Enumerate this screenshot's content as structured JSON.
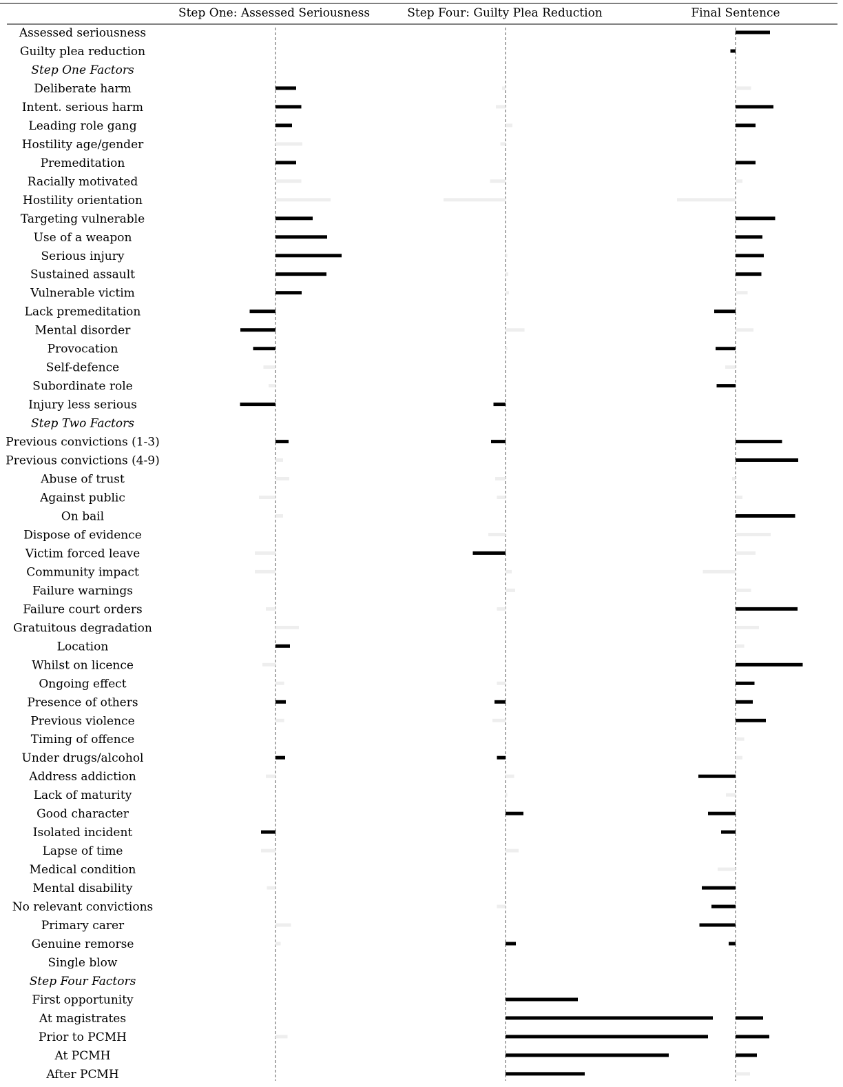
{
  "chart_data": {
    "type": "bar",
    "orientation": "horizontal",
    "panels": [
      {
        "key": "s1",
        "title": "Step One: Assessed Seriousness"
      },
      {
        "key": "s4",
        "title": "Step Four: Guilty Plea Reduction"
      },
      {
        "key": "fs",
        "title": "Final Sentence"
      }
    ],
    "rows": [
      {
        "label": "Assessed seriousness",
        "italic": false,
        "s1": null,
        "s4": null,
        "fs": 1.0,
        "s1_sig": false,
        "s4_sig": false,
        "fs_sig": true
      },
      {
        "label": "Guilty plea reduction",
        "italic": false,
        "s1": null,
        "s4": null,
        "fs": -0.15,
        "s1_sig": false,
        "s4_sig": false,
        "fs_sig": true
      },
      {
        "label": "Step One Factors",
        "italic": true,
        "s1": null,
        "s4": null,
        "fs": null,
        "s1_sig": false,
        "s4_sig": false,
        "fs_sig": false
      },
      {
        "label": "Deliberate harm",
        "italic": false,
        "s1": 0.6,
        "s4": -0.1,
        "fs": 0.45,
        "s1_sig": true,
        "s4_sig": false,
        "fs_sig": false
      },
      {
        "label": "Intent. serious harm",
        "italic": false,
        "s1": 0.75,
        "s4": -0.28,
        "fs": 1.1,
        "s1_sig": true,
        "s4_sig": false,
        "fs_sig": true
      },
      {
        "label": "Leading role gang",
        "italic": false,
        "s1": 0.48,
        "s4": 0.2,
        "fs": 0.58,
        "s1_sig": true,
        "s4_sig": false,
        "fs_sig": true
      },
      {
        "label": "Hostility age/gender",
        "italic": false,
        "s1": 0.78,
        "s4": -0.15,
        "fs": 0.0,
        "s1_sig": false,
        "s4_sig": false,
        "fs_sig": false
      },
      {
        "label": "Premeditation",
        "italic": false,
        "s1": 0.6,
        "s4": 0.0,
        "fs": 0.58,
        "s1_sig": true,
        "s4_sig": false,
        "fs_sig": true
      },
      {
        "label": "Racially motivated",
        "italic": false,
        "s1": 0.75,
        "s4": -0.45,
        "fs": 0.2,
        "s1_sig": false,
        "s4_sig": false,
        "fs_sig": false
      },
      {
        "label": "Hostility orientation",
        "italic": false,
        "s1": 1.6,
        "s4": -1.8,
        "fs": -1.7,
        "s1_sig": false,
        "s4_sig": false,
        "fs_sig": false
      },
      {
        "label": "Targeting vulnerable",
        "italic": false,
        "s1": 1.08,
        "s4": 0.0,
        "fs": 1.15,
        "s1_sig": true,
        "s4_sig": false,
        "fs_sig": true
      },
      {
        "label": "Use of a weapon",
        "italic": false,
        "s1": 1.5,
        "s4": 0.0,
        "fs": 0.78,
        "s1_sig": true,
        "s4_sig": false,
        "fs_sig": true
      },
      {
        "label": "Serious injury",
        "italic": false,
        "s1": 1.92,
        "s4": 0.05,
        "fs": 0.82,
        "s1_sig": true,
        "s4_sig": false,
        "fs_sig": true
      },
      {
        "label": "Sustained assault",
        "italic": false,
        "s1": 1.48,
        "s4": 0.08,
        "fs": 0.75,
        "s1_sig": true,
        "s4_sig": false,
        "fs_sig": true
      },
      {
        "label": "Vulnerable victim",
        "italic": false,
        "s1": 0.76,
        "s4": 0.1,
        "fs": 0.35,
        "s1_sig": true,
        "s4_sig": false,
        "fs_sig": false
      },
      {
        "label": "Lack premeditation",
        "italic": false,
        "s1": -0.75,
        "s4": 0.0,
        "fs": -0.62,
        "s1_sig": true,
        "s4_sig": false,
        "fs_sig": true
      },
      {
        "label": "Mental disorder",
        "italic": false,
        "s1": -1.02,
        "s4": 0.55,
        "fs": 0.52,
        "s1_sig": true,
        "s4_sig": false,
        "fs_sig": false
      },
      {
        "label": "Provocation",
        "italic": false,
        "s1": -0.65,
        "s4": 0.05,
        "fs": -0.58,
        "s1_sig": true,
        "s4_sig": false,
        "fs_sig": true
      },
      {
        "label": "Self-defence",
        "italic": false,
        "s1": -0.35,
        "s4": 0.0,
        "fs": -0.3,
        "s1_sig": false,
        "s4_sig": false,
        "fs_sig": false
      },
      {
        "label": "Subordinate role",
        "italic": false,
        "s1": -0.2,
        "s4": 0.0,
        "fs": -0.55,
        "s1_sig": false,
        "s4_sig": true,
        "fs_sig": true
      },
      {
        "label": "Injury less serious",
        "italic": false,
        "s1": -1.03,
        "s4": -0.35,
        "fs": 0.0,
        "s1_sig": true,
        "s4_sig": true,
        "fs_sig": false
      },
      {
        "label": "Step Two Factors",
        "italic": true,
        "s1": null,
        "s4": null,
        "fs": null,
        "s1_sig": false,
        "s4_sig": false,
        "fs_sig": false
      },
      {
        "label": "Previous convictions (1-3)",
        "italic": false,
        "s1": 0.38,
        "s4": -0.42,
        "fs": 1.35,
        "s1_sig": true,
        "s4_sig": true,
        "fs_sig": true
      },
      {
        "label": "Previous convictions (4-9)",
        "italic": false,
        "s1": 0.22,
        "s4": 0.0,
        "fs": 1.82,
        "s1_sig": false,
        "s4_sig": false,
        "fs_sig": true
      },
      {
        "label": "Abuse of trust",
        "italic": false,
        "s1": 0.4,
        "s4": -0.3,
        "fs": -0.1,
        "s1_sig": false,
        "s4_sig": false,
        "fs_sig": false
      },
      {
        "label": "Against public",
        "italic": false,
        "s1": -0.48,
        "s4": -0.25,
        "fs": 0.2,
        "s1_sig": false,
        "s4_sig": false,
        "fs_sig": false
      },
      {
        "label": "On bail",
        "italic": false,
        "s1": 0.22,
        "s4": 0.0,
        "fs": 1.73,
        "s1_sig": false,
        "s4_sig": false,
        "fs_sig": true
      },
      {
        "label": "Dispose of evidence",
        "italic": false,
        "s1": 0.0,
        "s4": -0.5,
        "fs": 1.02,
        "s1_sig": false,
        "s4_sig": false,
        "fs_sig": false
      },
      {
        "label": "Victim forced leave",
        "italic": false,
        "s1": -0.6,
        "s4": -0.95,
        "fs": 0.58,
        "s1_sig": false,
        "s4_sig": true,
        "fs_sig": false
      },
      {
        "label": "Community impact",
        "italic": false,
        "s1": -0.6,
        "s4": 0.18,
        "fs": -0.95,
        "s1_sig": false,
        "s4_sig": false,
        "fs_sig": false
      },
      {
        "label": "Failure warnings",
        "italic": false,
        "s1": 0.0,
        "s4": 0.28,
        "fs": 0.45,
        "s1_sig": false,
        "s4_sig": false,
        "fs_sig": false
      },
      {
        "label": "Failure court orders",
        "italic": false,
        "s1": -0.28,
        "s4": -0.25,
        "fs": 1.8,
        "s1_sig": false,
        "s4_sig": false,
        "fs_sig": true
      },
      {
        "label": "Gratuitous degradation",
        "italic": false,
        "s1": 0.68,
        "s4": 0.0,
        "fs": 0.68,
        "s1_sig": false,
        "s4_sig": false,
        "fs_sig": false
      },
      {
        "label": "Location",
        "italic": false,
        "s1": 0.42,
        "s4": 0.0,
        "fs": 0.25,
        "s1_sig": true,
        "s4_sig": false,
        "fs_sig": false
      },
      {
        "label": "Whilst on licence",
        "italic": false,
        "s1": -0.38,
        "s4": 0.0,
        "fs": 1.95,
        "s1_sig": false,
        "s4_sig": false,
        "fs_sig": true
      },
      {
        "label": "Ongoing effect",
        "italic": false,
        "s1": 0.25,
        "s4": -0.25,
        "fs": 0.55,
        "s1_sig": false,
        "s4_sig": false,
        "fs_sig": true
      },
      {
        "label": "Presence of others",
        "italic": false,
        "s1": 0.3,
        "s4": -0.32,
        "fs": 0.5,
        "s1_sig": true,
        "s4_sig": true,
        "fs_sig": true
      },
      {
        "label": "Previous violence",
        "italic": false,
        "s1": 0.25,
        "s4": -0.38,
        "fs": 0.88,
        "s1_sig": false,
        "s4_sig": false,
        "fs_sig": true
      },
      {
        "label": "Timing of offence",
        "italic": false,
        "s1": 0.0,
        "s4": 0.0,
        "fs": 0.25,
        "s1_sig": false,
        "s4_sig": false,
        "fs_sig": false
      },
      {
        "label": "Under drugs/alcohol",
        "italic": false,
        "s1": 0.28,
        "s4": -0.25,
        "fs": 0.2,
        "s1_sig": true,
        "s4_sig": true,
        "fs_sig": false
      },
      {
        "label": "Address addiction",
        "italic": false,
        "s1": -0.28,
        "s4": 0.25,
        "fs": -1.08,
        "s1_sig": false,
        "s4_sig": false,
        "fs_sig": true
      },
      {
        "label": "Lack of maturity",
        "italic": false,
        "s1": 0.0,
        "s4": 0.05,
        "fs": -0.28,
        "s1_sig": false,
        "s4_sig": false,
        "fs_sig": false
      },
      {
        "label": "Good character",
        "italic": false,
        "s1": 0.0,
        "s4": 0.52,
        "fs": -0.8,
        "s1_sig": false,
        "s4_sig": true,
        "fs_sig": true
      },
      {
        "label": "Isolated incident",
        "italic": false,
        "s1": -0.42,
        "s4": 0.0,
        "fs": -0.42,
        "s1_sig": true,
        "s4_sig": false,
        "fs_sig": true
      },
      {
        "label": "Lapse of time",
        "italic": false,
        "s1": -0.42,
        "s4": 0.38,
        "fs": 0.0,
        "s1_sig": false,
        "s4_sig": false,
        "fs_sig": false
      },
      {
        "label": "Medical condition",
        "italic": false,
        "s1": 0.0,
        "s4": 0.0,
        "fs": -0.52,
        "s1_sig": false,
        "s4_sig": false,
        "fs_sig": false
      },
      {
        "label": "Mental disability",
        "italic": false,
        "s1": -0.25,
        "s4": 0.0,
        "fs": -0.98,
        "s1_sig": false,
        "s4_sig": false,
        "fs_sig": true
      },
      {
        "label": "No relevant convictions",
        "italic": false,
        "s1": 0.0,
        "s4": -0.25,
        "fs": -0.7,
        "s1_sig": false,
        "s4_sig": false,
        "fs_sig": true
      },
      {
        "label": "Primary carer",
        "italic": false,
        "s1": 0.45,
        "s4": 0.0,
        "fs": -1.05,
        "s1_sig": false,
        "s4_sig": false,
        "fs_sig": true
      },
      {
        "label": "Genuine remorse",
        "italic": false,
        "s1": 0.15,
        "s4": 0.3,
        "fs": -0.2,
        "s1_sig": false,
        "s4_sig": true,
        "fs_sig": true
      },
      {
        "label": "Single blow",
        "italic": false,
        "s1": 0.0,
        "s4": 0.0,
        "fs": 0.0,
        "s1_sig": false,
        "s4_sig": false,
        "fs_sig": false
      },
      {
        "label": "Step Four Factors",
        "italic": true,
        "s1": null,
        "s4": null,
        "fs": null,
        "s1_sig": false,
        "s4_sig": false,
        "fs_sig": false
      },
      {
        "label": "First opportunity",
        "italic": false,
        "s1": null,
        "s4": 2.1,
        "fs": 0.0,
        "s1_sig": false,
        "s4_sig": true,
        "fs_sig": false
      },
      {
        "label": "At magistrates",
        "italic": false,
        "s1": null,
        "s4": 6.02,
        "fs": 0.8,
        "s1_sig": false,
        "s4_sig": true,
        "fs_sig": true
      },
      {
        "label": "Prior to PCMH",
        "italic": false,
        "s1": 0.35,
        "s4": 5.88,
        "fs": 0.98,
        "s1_sig": false,
        "s4_sig": true,
        "fs_sig": true
      },
      {
        "label": "At PCMH",
        "italic": false,
        "s1": null,
        "s4": 4.74,
        "fs": 0.62,
        "s1_sig": false,
        "s4_sig": true,
        "fs_sig": true
      },
      {
        "label": "After PCMH",
        "italic": false,
        "s1": 0.0,
        "s4": 2.3,
        "fs": 0.42,
        "s1_sig": false,
        "s4_sig": true,
        "fs_sig": false
      }
    ]
  }
}
